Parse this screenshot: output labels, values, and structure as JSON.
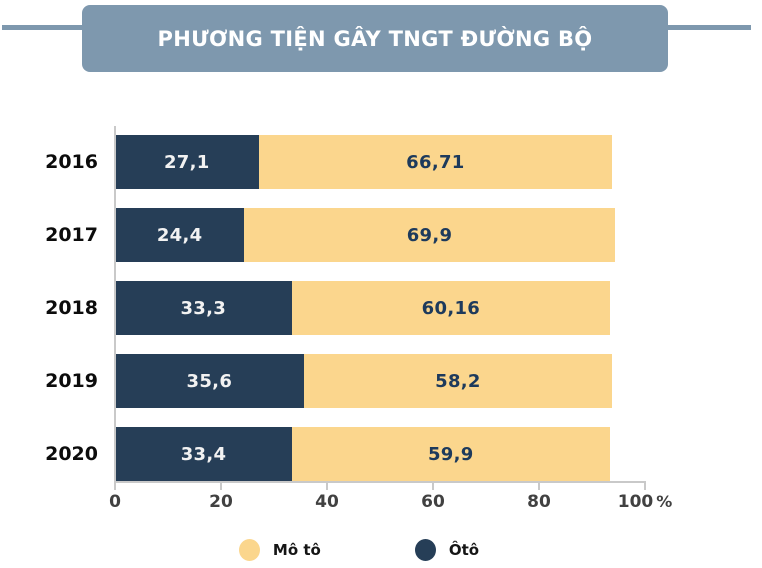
{
  "header": {
    "title": "PHƯƠNG TIỆN GÂY TNGT ĐƯỜNG BỘ"
  },
  "colors": {
    "banner": "#7E98AE",
    "header_line": "#7E98AE",
    "oto": "#263E57",
    "moto": "#FBD68D",
    "value_on_oto": "#F2F2F2",
    "value_on_moto": "#1D3A5C",
    "axis": "#C9C9C9",
    "tick_label": "#414141",
    "year_label": "#0C0C0C"
  },
  "chart_data": {
    "type": "bar",
    "orientation": "horizontal",
    "stacked": true,
    "title": "PHƯƠNG TIỆN GÂY TNGT ĐƯỜNG BỘ",
    "categories": [
      "2016",
      "2017",
      "2018",
      "2019",
      "2020"
    ],
    "series": [
      {
        "name": "Ôtô",
        "color": "#263E57",
        "values": [
          27.1,
          24.4,
          33.3,
          35.6,
          33.4
        ],
        "labels": [
          "27,1",
          "24,4",
          "33,3",
          "35,6",
          "33,4"
        ]
      },
      {
        "name": "Mô tô",
        "color": "#FBD68D",
        "values": [
          66.71,
          69.9,
          60.16,
          58.2,
          59.9
        ],
        "labels": [
          "66,71",
          "69,9",
          "60,16",
          "58,2",
          "59,9"
        ]
      }
    ],
    "xlim": [
      0,
      100
    ],
    "x_ticks": [
      "0",
      "20",
      "40",
      "60",
      "80",
      "100"
    ],
    "x_unit": "%",
    "grid": false,
    "legend_position": "bottom",
    "legend": [
      {
        "label": "Mô tô",
        "color": "#FBD68D"
      },
      {
        "label": "Ôtô",
        "color": "#263E57"
      }
    ]
  }
}
